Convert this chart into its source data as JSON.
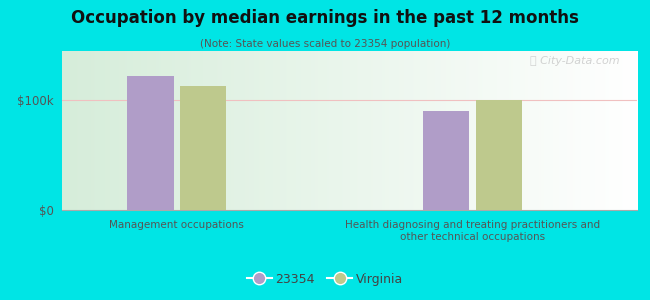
{
  "title": "Occupation by median earnings in the past 12 months",
  "subtitle": "(Note: State values scaled to 23354 population)",
  "categories": [
    "Management occupations",
    "Health diagnosing and treating practitioners and\nother technical occupations"
  ],
  "values_23354": [
    122000,
    90000
  ],
  "values_virginia": [
    113000,
    100000
  ],
  "color_23354": "#b09dc8",
  "color_virginia": "#bec98d",
  "yticks": [
    0,
    100000
  ],
  "yticklabels": [
    "$0",
    "$100k"
  ],
  "ylim": [
    0,
    145000
  ],
  "bg_color": "#00e5e5",
  "legend_label_23354": "23354",
  "legend_label_virginia": "Virginia",
  "watermark": "Ⓣ City-Data.com",
  "bar_width": 0.28,
  "group_positions": [
    0.9,
    2.7
  ]
}
